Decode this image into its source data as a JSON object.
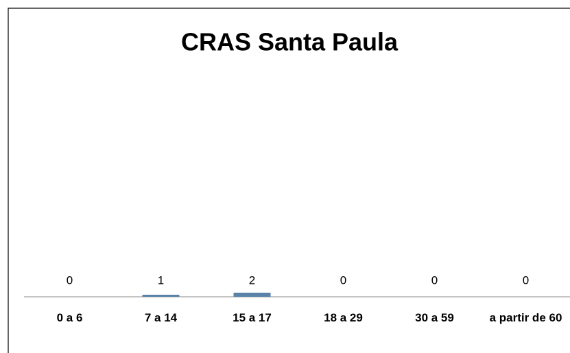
{
  "chart_data": {
    "type": "bar",
    "title": "CRAS Santa Paula",
    "categories": [
      "0 a 6",
      "7 a 14",
      "15 a 17",
      "18 a 29",
      "30 a 59",
      "a partir de 60"
    ],
    "values": [
      0,
      1,
      2,
      0,
      0,
      0
    ],
    "color": "#5b83a8",
    "ylim": [
      0,
      100
    ],
    "grid": false
  }
}
